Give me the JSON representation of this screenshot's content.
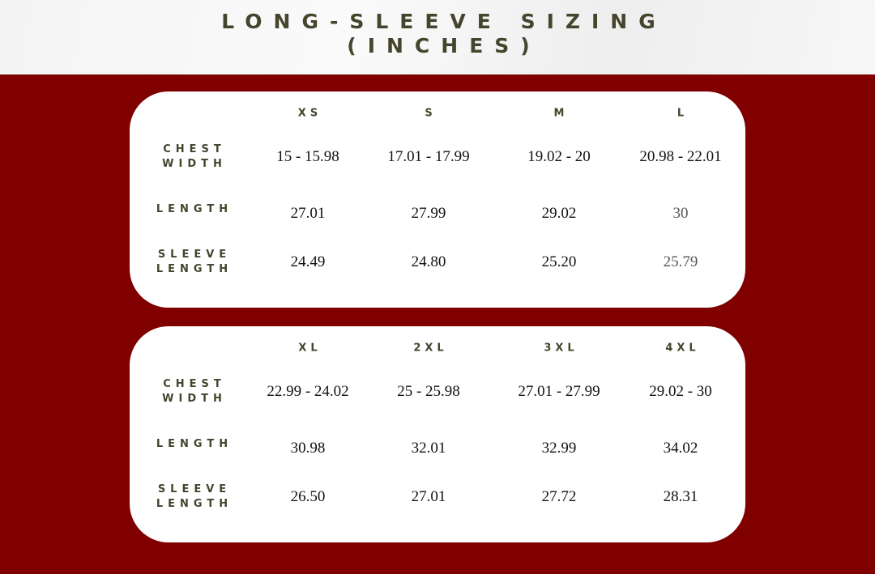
{
  "title": {
    "line1": "LONG-SLEEVE SIZING",
    "line2": "(INCHES)"
  },
  "colors": {
    "background": "#800000",
    "text": "#45452e",
    "card": "#ffffff"
  },
  "row_labels": {
    "chest1": "CHEST",
    "chest2": "WIDTH",
    "length": "LENGTH",
    "sleeve1": "SLEEVE",
    "sleeve2": "LENGTH"
  },
  "tables": [
    {
      "sizes": [
        "XS",
        "S",
        "M",
        "L"
      ],
      "chest_width": [
        "15 - 15.98",
        "17.01 - 17.99",
        "19.02 - 20",
        "20.98 - 22.01"
      ],
      "length": [
        "27.01",
        "27.99",
        "29.02",
        "30"
      ],
      "sleeve_length": [
        "24.49",
        "24.80",
        "25.20",
        "25.79"
      ]
    },
    {
      "sizes": [
        "XL",
        "2XL",
        "3XL",
        "4XL"
      ],
      "chest_width": [
        "22.99 - 24.02",
        "25 - 25.98",
        "27.01 - 27.99",
        "29.02 - 30"
      ],
      "length": [
        "30.98",
        "32.01",
        "32.99",
        "34.02"
      ],
      "sleeve_length": [
        "26.50",
        "27.01",
        "27.72",
        "28.31"
      ]
    }
  ]
}
